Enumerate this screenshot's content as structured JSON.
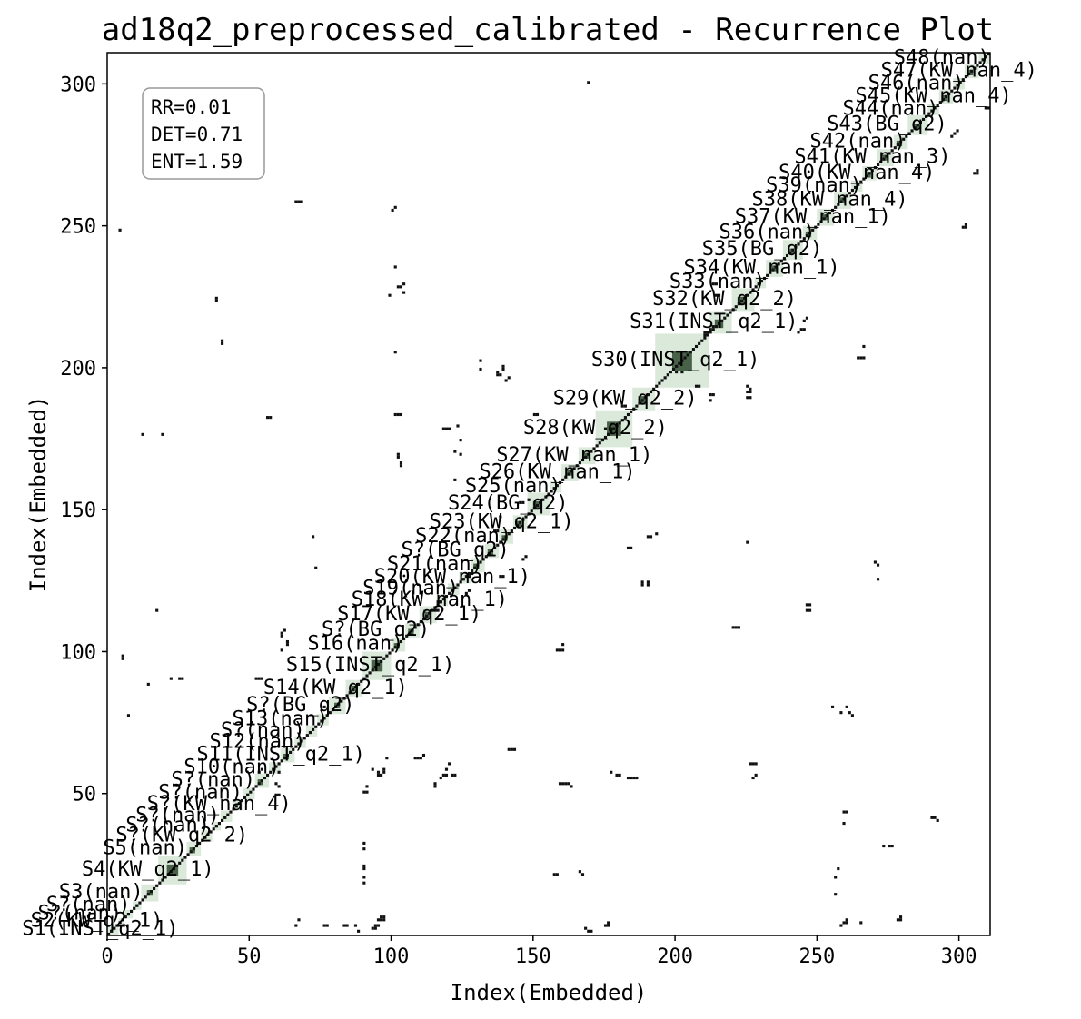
{
  "chart_data": {
    "type": "heatmap",
    "title": "ad18q2_preprocessed_calibrated - Recurrence Plot",
    "xlabel": "Index(Embedded)",
    "ylabel": "Index(Embedded)",
    "xlim": [
      0,
      311
    ],
    "ylim": [
      0,
      311
    ],
    "xticks": [
      0,
      50,
      100,
      150,
      200,
      250,
      300
    ],
    "yticks": [
      50,
      100,
      150,
      200,
      250,
      300
    ],
    "grid": false,
    "stats": {
      "rr": "RR=0.01",
      "det": "DET=0.71",
      "ent": "ENT=1.59"
    },
    "colors": {
      "recurrence": "#111111",
      "segment_fill": "#cfe2cf",
      "segment_dark": "#2e4a2e"
    },
    "segments": [
      {
        "label": "S1(INST_q2_1)",
        "start": 0,
        "end": 4
      },
      {
        "label": "S2(KW_q2_1)",
        "start": 4,
        "end": 6
      },
      {
        "label": "S?(nan)",
        "start": 6,
        "end": 9
      },
      {
        "label": "S?(nan)",
        "start": 9,
        "end": 12
      },
      {
        "label": "S3(nan)",
        "start": 12,
        "end": 18
      },
      {
        "label": "S4(KW_q2_1)",
        "start": 18,
        "end": 28
      },
      {
        "label": "S5(nan)",
        "start": 28,
        "end": 33
      },
      {
        "label": "S?(KW_q2_2)",
        "start": 33,
        "end": 37
      },
      {
        "label": "S?(nan)",
        "start": 37,
        "end": 40
      },
      {
        "label": "S?(nan)",
        "start": 40,
        "end": 44
      },
      {
        "label": "S?(KW_nan_4)",
        "start": 44,
        "end": 48
      },
      {
        "label": "S?(nan)",
        "start": 48,
        "end": 52
      },
      {
        "label": "S?(nan)",
        "start": 52,
        "end": 57
      },
      {
        "label": "S10(nan)",
        "start": 57,
        "end": 61
      },
      {
        "label": "S11(INST_q2_1)",
        "start": 61,
        "end": 66
      },
      {
        "label": "S12(nan)",
        "start": 66,
        "end": 70
      },
      {
        "label": "S?(nan)",
        "start": 70,
        "end": 74
      },
      {
        "label": "S13(nan)",
        "start": 74,
        "end": 78
      },
      {
        "label": "S?(BG_q2)",
        "start": 78,
        "end": 84
      },
      {
        "label": "S14(KW_q2_1)",
        "start": 84,
        "end": 90
      },
      {
        "label": "S15(INST_q2_1)",
        "start": 90,
        "end": 100
      },
      {
        "label": "S16(nan)",
        "start": 100,
        "end": 105
      },
      {
        "label": "S?(BG_q2)",
        "start": 105,
        "end": 110
      },
      {
        "label": "S17(KW_q2_1)",
        "start": 110,
        "end": 116
      },
      {
        "label": "S18(KW_nan_1)",
        "start": 116,
        "end": 120
      },
      {
        "label": "S19(nan)",
        "start": 120,
        "end": 124
      },
      {
        "label": "S20(KW_nan_1)",
        "start": 124,
        "end": 128
      },
      {
        "label": "S21(nan)",
        "start": 128,
        "end": 133
      },
      {
        "label": "S?(BG_q2)",
        "start": 133,
        "end": 138
      },
      {
        "label": "S22(nan)",
        "start": 138,
        "end": 143
      },
      {
        "label": "S23(KW_q2_1)",
        "start": 143,
        "end": 148
      },
      {
        "label": "S24(BG_q2)",
        "start": 148,
        "end": 156
      },
      {
        "label": "S25(nan)",
        "start": 156,
        "end": 160
      },
      {
        "label": "S26(KW_nan_1)",
        "start": 160,
        "end": 166
      },
      {
        "label": "S27(KW_nan_1)",
        "start": 166,
        "end": 172
      },
      {
        "label": "S28(KW_q2_2)",
        "start": 172,
        "end": 185
      },
      {
        "label": "S29(KW_q2_2)",
        "start": 185,
        "end": 193
      },
      {
        "label": "S30(INST_q2_1)",
        "start": 193,
        "end": 212
      },
      {
        "label": "S31(INST_q2_1)",
        "start": 212,
        "end": 220
      },
      {
        "label": "S32(KW_q2_2)",
        "start": 220,
        "end": 228
      },
      {
        "label": "S33(nan)",
        "start": 228,
        "end": 232
      },
      {
        "label": "S34(KW_nan_1)",
        "start": 232,
        "end": 238
      },
      {
        "label": "S35(BG_q2)",
        "start": 238,
        "end": 245
      },
      {
        "label": "S36(nan)",
        "start": 245,
        "end": 250
      },
      {
        "label": "S37(KW_nan_1)",
        "start": 250,
        "end": 256
      },
      {
        "label": "S38(KW_nan_4)",
        "start": 256,
        "end": 262
      },
      {
        "label": "S39(nan)",
        "start": 262,
        "end": 266
      },
      {
        "label": "S40(KW_nan_4)",
        "start": 266,
        "end": 271
      },
      {
        "label": "S41(KW_nan_3)",
        "start": 271,
        "end": 277
      },
      {
        "label": "S42(nan)",
        "start": 277,
        "end": 282
      },
      {
        "label": "S43(BG_q2)",
        "start": 282,
        "end": 289
      },
      {
        "label": "S44(nan)",
        "start": 289,
        "end": 293
      },
      {
        "label": "S45(KW_nan_4)",
        "start": 293,
        "end": 298
      },
      {
        "label": "S46(nan)",
        "start": 298,
        "end": 302
      },
      {
        "label": "S47(KW_nan_4)",
        "start": 302,
        "end": 307
      },
      {
        "label": "S48(nan)",
        "start": 307,
        "end": 311
      }
    ],
    "off_diagonal_points": [
      [
        5,
        97
      ],
      [
        5,
        98
      ],
      [
        4,
        248
      ],
      [
        7,
        77
      ],
      [
        12,
        176
      ],
      [
        14,
        88
      ],
      [
        17,
        114
      ],
      [
        19,
        176
      ],
      [
        22,
        90
      ],
      [
        25,
        90
      ],
      [
        26,
        90
      ],
      [
        38,
        223
      ],
      [
        38,
        224
      ],
      [
        40,
        208
      ],
      [
        40,
        209
      ],
      [
        52,
        90
      ],
      [
        53,
        90
      ],
      [
        54,
        90
      ],
      [
        53,
        57
      ],
      [
        54,
        58
      ],
      [
        56,
        182
      ],
      [
        57,
        182
      ],
      [
        59,
        49
      ],
      [
        60,
        49
      ],
      [
        60,
        52
      ],
      [
        59,
        53
      ],
      [
        60,
        57
      ],
      [
        61,
        105
      ],
      [
        61,
        106
      ],
      [
        62,
        107
      ],
      [
        61,
        100
      ],
      [
        63,
        102
      ],
      [
        63,
        103
      ],
      [
        66,
        3
      ],
      [
        67,
        5
      ],
      [
        66,
        258
      ],
      [
        67,
        258
      ],
      [
        68,
        258
      ],
      [
        72,
        140
      ],
      [
        73,
        129
      ],
      [
        76,
        3
      ],
      [
        77,
        3
      ],
      [
        76,
        80
      ],
      [
        83,
        3
      ],
      [
        84,
        3
      ],
      [
        87,
        3
      ],
      [
        88,
        1
      ],
      [
        90,
        18
      ],
      [
        90,
        20
      ],
      [
        90,
        23
      ],
      [
        90,
        24
      ],
      [
        90,
        30
      ],
      [
        90,
        32
      ],
      [
        90,
        50
      ],
      [
        91,
        50
      ],
      [
        91,
        52
      ],
      [
        93,
        2
      ],
      [
        94,
        2
      ],
      [
        94,
        3
      ],
      [
        95,
        3
      ],
      [
        95,
        5
      ],
      [
        96,
        5
      ],
      [
        96,
        6
      ],
      [
        97,
        5
      ],
      [
        97,
        6
      ],
      [
        95,
        56
      ],
      [
        95,
        57
      ],
      [
        96,
        56
      ],
      [
        97,
        57
      ],
      [
        97,
        58
      ],
      [
        93,
        58
      ],
      [
        99,
        225
      ],
      [
        100,
        255
      ],
      [
        101,
        256
      ],
      [
        101,
        235
      ],
      [
        101,
        205
      ],
      [
        101,
        183
      ],
      [
        102,
        183
      ],
      [
        103,
        183
      ],
      [
        102,
        168
      ],
      [
        102,
        169
      ],
      [
        103,
        165
      ],
      [
        103,
        166
      ],
      [
        102,
        228
      ],
      [
        103,
        228
      ],
      [
        104,
        229
      ],
      [
        104,
        226
      ],
      [
        98,
        62
      ],
      [
        108,
        62
      ],
      [
        109,
        62
      ],
      [
        110,
        62
      ],
      [
        111,
        63
      ],
      [
        115,
        114
      ],
      [
        115,
        115
      ],
      [
        116,
        114
      ],
      [
        116,
        117
      ],
      [
        117,
        117
      ],
      [
        115,
        52
      ],
      [
        115,
        53
      ],
      [
        117,
        55
      ],
      [
        118,
        56
      ],
      [
        119,
        56
      ],
      [
        121,
        56
      ],
      [
        122,
        56
      ],
      [
        119,
        58
      ],
      [
        120,
        60
      ],
      [
        118,
        178
      ],
      [
        119,
        178
      ],
      [
        120,
        178
      ],
      [
        122,
        160
      ],
      [
        122,
        170
      ],
      [
        123,
        179
      ],
      [
        124,
        174
      ],
      [
        124,
        169
      ],
      [
        126,
        120
      ],
      [
        127,
        121
      ],
      [
        127,
        126
      ],
      [
        128,
        127
      ],
      [
        131,
        199
      ],
      [
        131,
        202
      ],
      [
        137,
        197
      ],
      [
        137,
        198
      ],
      [
        138,
        197
      ],
      [
        139,
        199
      ],
      [
        139,
        200
      ],
      [
        140,
        195
      ],
      [
        141,
        196
      ],
      [
        141,
        65
      ],
      [
        142,
        65
      ],
      [
        143,
        65
      ],
      [
        138,
        126
      ],
      [
        139,
        126
      ],
      [
        138,
        147
      ],
      [
        136,
        142
      ],
      [
        137,
        142
      ],
      [
        145,
        152
      ],
      [
        146,
        152
      ],
      [
        146,
        132
      ],
      [
        147,
        133
      ],
      [
        150,
        183
      ],
      [
        151,
        183
      ],
      [
        148,
        153
      ],
      [
        158,
        100
      ],
      [
        159,
        100
      ],
      [
        160,
        100
      ],
      [
        160,
        102
      ],
      [
        159,
        53
      ],
      [
        160,
        53
      ],
      [
        161,
        53
      ],
      [
        162,
        53
      ],
      [
        163,
        52
      ],
      [
        157,
        21
      ],
      [
        158,
        21
      ],
      [
        166,
        22
      ],
      [
        167,
        21
      ],
      [
        168,
        2
      ],
      [
        169,
        1
      ],
      [
        170,
        1
      ],
      [
        169,
        300
      ],
      [
        175,
        3
      ],
      [
        176,
        3
      ],
      [
        176,
        4
      ],
      [
        176,
        176
      ],
      [
        175,
        178
      ],
      [
        177,
        178
      ],
      [
        181,
        186
      ],
      [
        182,
        186
      ],
      [
        177,
        57
      ],
      [
        179,
        56
      ],
      [
        180,
        56
      ],
      [
        183,
        55
      ],
      [
        184,
        55
      ],
      [
        185,
        55
      ],
      [
        186,
        55
      ],
      [
        183,
        136
      ],
      [
        184,
        136
      ],
      [
        190,
        140
      ],
      [
        191,
        140
      ],
      [
        193,
        141
      ],
      [
        188,
        123
      ],
      [
        188,
        124
      ],
      [
        190,
        123
      ],
      [
        190,
        124
      ],
      [
        200,
        198
      ],
      [
        202,
        198
      ],
      [
        207,
        193
      ],
      [
        208,
        193
      ],
      [
        212,
        190
      ],
      [
        213,
        190
      ],
      [
        212,
        188
      ],
      [
        210,
        211
      ],
      [
        210,
        212
      ],
      [
        211,
        212
      ],
      [
        212,
        213
      ],
      [
        213,
        214
      ],
      [
        214,
        225
      ],
      [
        215,
        225
      ],
      [
        213,
        229
      ],
      [
        214,
        229
      ],
      [
        225,
        189
      ],
      [
        226,
        189
      ],
      [
        225,
        191
      ],
      [
        226,
        191
      ],
      [
        225,
        193
      ],
      [
        226,
        192
      ],
      [
        220,
        108
      ],
      [
        221,
        108
      ],
      [
        222,
        108
      ],
      [
        225,
        138
      ],
      [
        226,
        60
      ],
      [
        227,
        60
      ],
      [
        228,
        60
      ],
      [
        227,
        55
      ],
      [
        228,
        56
      ],
      [
        246,
        114
      ],
      [
        247,
        114
      ],
      [
        246,
        116
      ],
      [
        247,
        116
      ],
      [
        243,
        212
      ],
      [
        244,
        213
      ],
      [
        245,
        213
      ],
      [
        245,
        216
      ],
      [
        246,
        217
      ],
      [
        256,
        14
      ],
      [
        256,
        20
      ],
      [
        257,
        23
      ],
      [
        259,
        39
      ],
      [
        259,
        43
      ],
      [
        260,
        43
      ],
      [
        258,
        78
      ],
      [
        258,
        3
      ],
      [
        259,
        4
      ],
      [
        260,
        4
      ],
      [
        260,
        5
      ],
      [
        265,
        4
      ],
      [
        264,
        203
      ],
      [
        265,
        203
      ],
      [
        266,
        203
      ],
      [
        266,
        207
      ],
      [
        255,
        80
      ],
      [
        260,
        80
      ],
      [
        261,
        78
      ],
      [
        262,
        77
      ],
      [
        270,
        131
      ],
      [
        271,
        130
      ],
      [
        271,
        125
      ],
      [
        273,
        31
      ],
      [
        275,
        31
      ],
      [
        276,
        31
      ],
      [
        278,
        5
      ],
      [
        279,
        5
      ],
      [
        279,
        6
      ],
      [
        290,
        41
      ],
      [
        291,
        41
      ],
      [
        292,
        40
      ],
      [
        297,
        281
      ],
      [
        298,
        282
      ],
      [
        299,
        283
      ],
      [
        301,
        249
      ],
      [
        302,
        249
      ],
      [
        302,
        250
      ],
      [
        305,
        268
      ],
      [
        306,
        268
      ],
      [
        306,
        269
      ],
      [
        309,
        291
      ],
      [
        310,
        291
      ]
    ]
  }
}
